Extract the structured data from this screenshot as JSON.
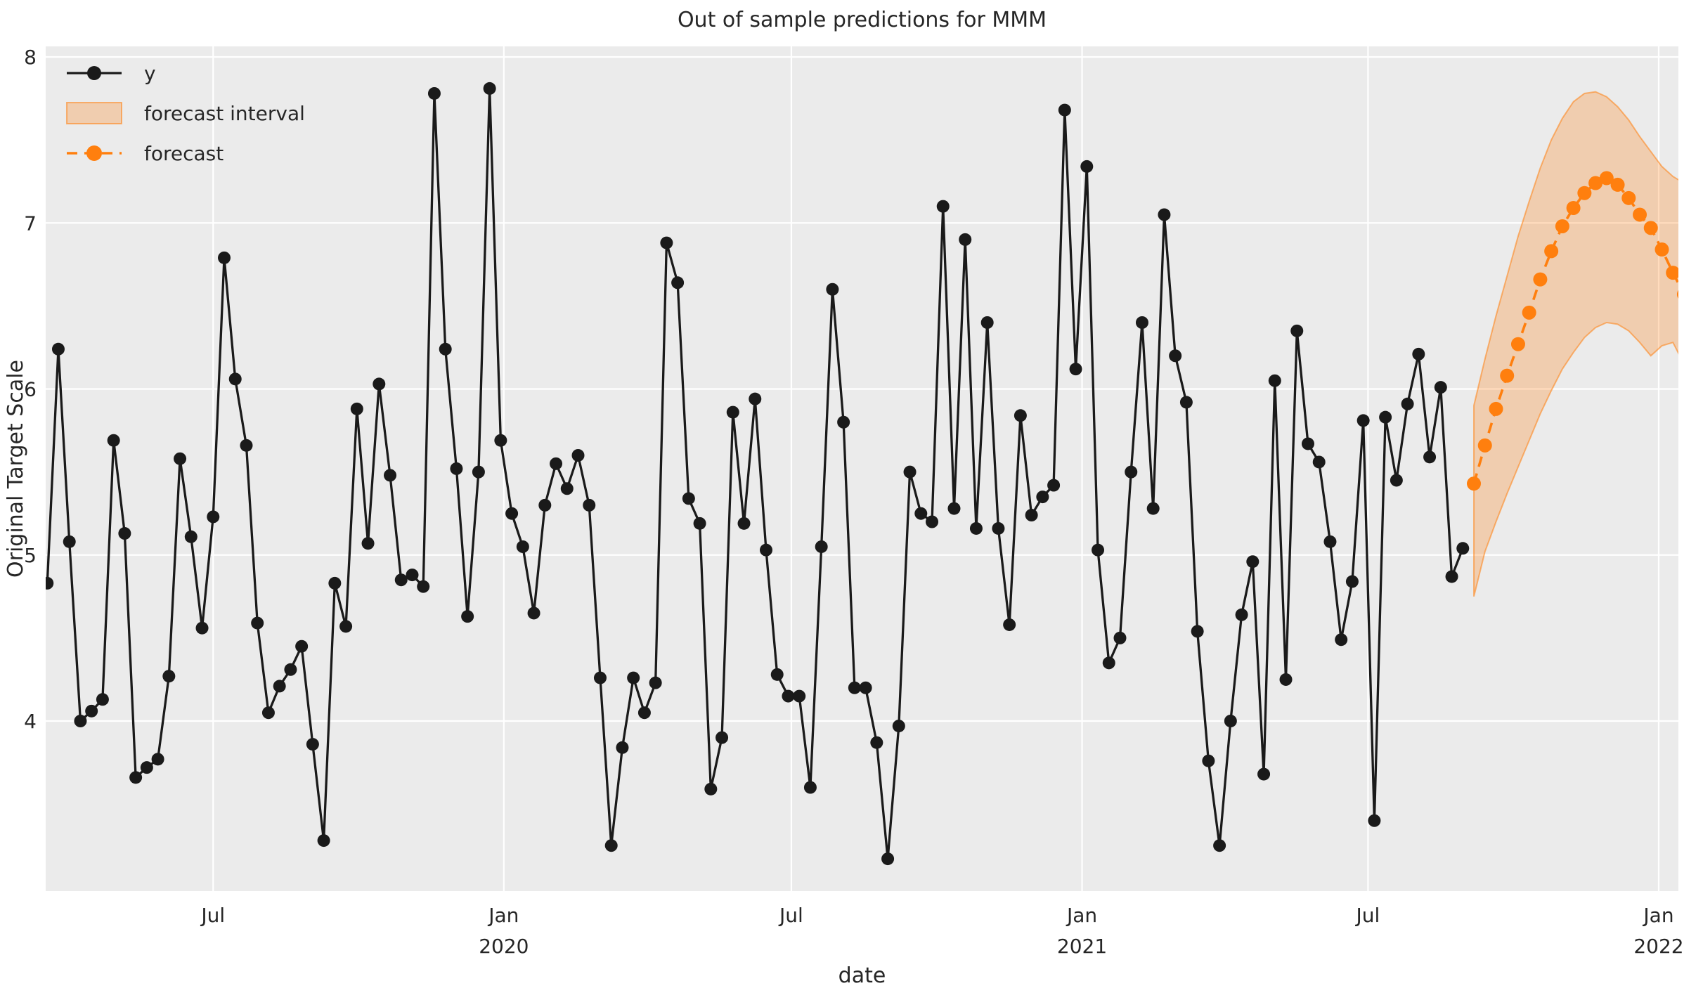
{
  "chart_data": {
    "type": "line",
    "title": "Out of sample predictions for MMM",
    "xlabel": "date",
    "ylabel": "Original Target Scale",
    "ylim": [
      2.97,
      8.06
    ],
    "yticks": [
      4,
      5,
      6,
      7,
      8
    ],
    "xticks": [
      {
        "label": "Jul",
        "year": "",
        "date": "2019-07-01"
      },
      {
        "label": "Jan",
        "year": "2020",
        "date": "2020-01-01"
      },
      {
        "label": "Jul",
        "year": "",
        "date": "2020-07-01"
      },
      {
        "label": "Jan",
        "year": "2021",
        "date": "2021-01-01"
      },
      {
        "label": "Jul",
        "year": "",
        "date": "2021-07-01"
      },
      {
        "label": "Jan",
        "year": "2022",
        "date": "2022-01-01"
      }
    ],
    "x_range": {
      "start": "2019-03-17",
      "end": "2022-01-13"
    },
    "grid": true,
    "legend_position": "upper-left",
    "legend": [
      "y",
      "forecast interval",
      "forecast"
    ],
    "colors": {
      "y_series": "#1a1a1a",
      "forecast": "#ff7f0e",
      "band_fill": "rgba(255,127,14,0.27)",
      "band_edge": "rgba(255,127,14,0.55)",
      "plot_bg": "#ebebeb",
      "grid": "#ffffff",
      "text": "#262626"
    },
    "series": [
      {
        "name": "y",
        "style": "solid",
        "marker": "circle",
        "start_date": "2019-03-18",
        "freq_days": 7,
        "values": [
          4.83,
          6.24,
          5.08,
          4.0,
          4.06,
          4.13,
          5.69,
          5.13,
          3.66,
          3.72,
          3.77,
          4.27,
          5.58,
          5.11,
          4.56,
          5.23,
          6.79,
          6.06,
          5.66,
          4.59,
          4.05,
          4.21,
          4.31,
          4.45,
          3.86,
          3.28,
          4.83,
          4.57,
          5.88,
          5.07,
          6.03,
          5.48,
          4.85,
          4.88,
          4.81,
          7.78,
          6.24,
          5.52,
          4.63,
          5.5,
          7.81,
          5.69,
          5.25,
          5.05,
          4.65,
          5.3,
          5.55,
          5.4,
          5.6,
          5.3,
          4.26,
          3.25,
          3.84,
          4.26,
          4.05,
          4.23,
          6.88,
          6.64,
          5.34,
          5.19,
          3.59,
          3.9,
          5.86,
          5.19,
          5.94,
          5.03,
          4.28,
          4.15,
          4.15,
          3.6,
          5.05,
          6.6,
          5.8,
          4.2,
          4.2,
          3.87,
          3.17,
          3.97,
          5.5,
          5.25,
          5.2,
          7.1,
          5.28,
          6.9,
          5.16,
          6.4,
          5.16,
          4.58,
          5.84,
          5.24,
          5.35,
          5.42,
          7.68,
          6.12,
          7.34,
          5.03,
          4.35,
          4.5,
          5.5,
          6.4,
          5.28,
          7.05,
          6.2,
          5.92,
          4.54,
          3.76,
          3.25,
          4.0,
          4.64,
          4.96,
          3.68,
          6.05,
          4.25,
          6.35,
          5.67,
          5.56,
          5.08,
          4.49,
          4.84,
          5.81,
          3.4,
          5.83,
          5.45,
          5.91,
          6.21,
          5.59,
          6.01,
          4.87,
          5.04
        ]
      },
      {
        "name": "forecast",
        "style": "dashed",
        "marker": "circle",
        "start_date": "2021-09-06",
        "freq_days": 7,
        "values": [
          5.43,
          5.66,
          5.88,
          6.08,
          6.27,
          6.46,
          6.66,
          6.83,
          6.98,
          7.09,
          7.18,
          7.24,
          7.27,
          7.23,
          7.15,
          7.05,
          6.97,
          6.84,
          6.7,
          6.57,
          6.55
        ]
      }
    ],
    "band": {
      "name": "forecast interval",
      "start_date": "2021-09-06",
      "freq_days": 7,
      "lower": [
        4.75,
        5.02,
        5.2,
        5.37,
        5.53,
        5.69,
        5.85,
        5.99,
        6.12,
        6.22,
        6.31,
        6.37,
        6.4,
        6.39,
        6.35,
        6.28,
        6.2,
        6.26,
        6.28,
        6.15,
        6.02
      ],
      "upper": [
        5.9,
        6.18,
        6.44,
        6.68,
        6.92,
        7.13,
        7.33,
        7.5,
        7.63,
        7.73,
        7.78,
        7.79,
        7.76,
        7.7,
        7.62,
        7.52,
        7.43,
        7.34,
        7.28,
        7.24,
        7.12
      ]
    }
  }
}
